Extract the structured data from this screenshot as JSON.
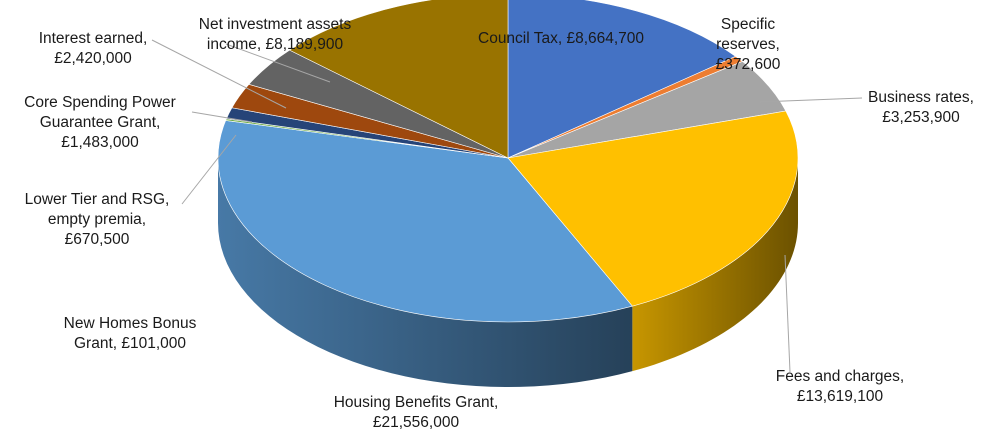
{
  "chart_data": {
    "type": "pie",
    "style": "3d",
    "title": "",
    "slices": [
      {
        "label": "Council Tax",
        "value": 8664700,
        "value_label": "£8,664,700",
        "color": "#4472C4"
      },
      {
        "label": "Specific reserves",
        "value": 372600,
        "value_label": "£372,600",
        "color": "#ED7D31"
      },
      {
        "label": "Business rates",
        "value": 3253900,
        "value_label": "£3,253,900",
        "color": "#A5A5A5"
      },
      {
        "label": "Fees and charges",
        "value": 13619100,
        "value_label": "£13,619,100",
        "color": "#FFC000"
      },
      {
        "label": "Housing Benefits Grant",
        "value": 21556000,
        "value_label": "£21,556,000",
        "color": "#5B9BD5"
      },
      {
        "label": "New Homes Bonus Grant",
        "value": 101000,
        "value_label": "£101,000",
        "color": "#70AD47"
      },
      {
        "label": "Lower Tier and RSG, empty premia",
        "value": 670500,
        "value_label": "£670,500",
        "color": "#264478"
      },
      {
        "label": "Core Spending Power Guarantee Grant",
        "value": 1483000,
        "value_label": "£1,483,000",
        "color": "#9E480E"
      },
      {
        "label": "Interest earned",
        "value": 2420000,
        "value_label": "£2,420,000",
        "color": "#636363"
      },
      {
        "label": "Net investment assets income",
        "value": 8189900,
        "value_label": "£8,189,900",
        "color": "#997300"
      }
    ],
    "labels": [
      {
        "lines": [
          "Council Tax,  £8,664,700"
        ]
      },
      {
        "lines": [
          "Specific",
          "reserves,",
          "£372,600"
        ]
      },
      {
        "lines": [
          "Business rates,",
          "£3,253,900"
        ]
      },
      {
        "lines": [
          "Fees and charges,",
          "£13,619,100"
        ]
      },
      {
        "lines": [
          "Housing Benefits Grant,",
          "£21,556,000"
        ]
      },
      {
        "lines": [
          "New Homes Bonus",
          "Grant,  £101,000"
        ]
      },
      {
        "lines": [
          "Lower Tier and RSG,",
          "empty premia,",
          "£670,500"
        ]
      },
      {
        "lines": [
          "Core Spending Power",
          "Guarantee Grant,",
          "£1,483,000"
        ]
      },
      {
        "lines": [
          "Interest earned,",
          "£2,420,000"
        ]
      },
      {
        "lines": [
          "Net investment assets",
          "income,  £8,189,900"
        ]
      }
    ]
  }
}
